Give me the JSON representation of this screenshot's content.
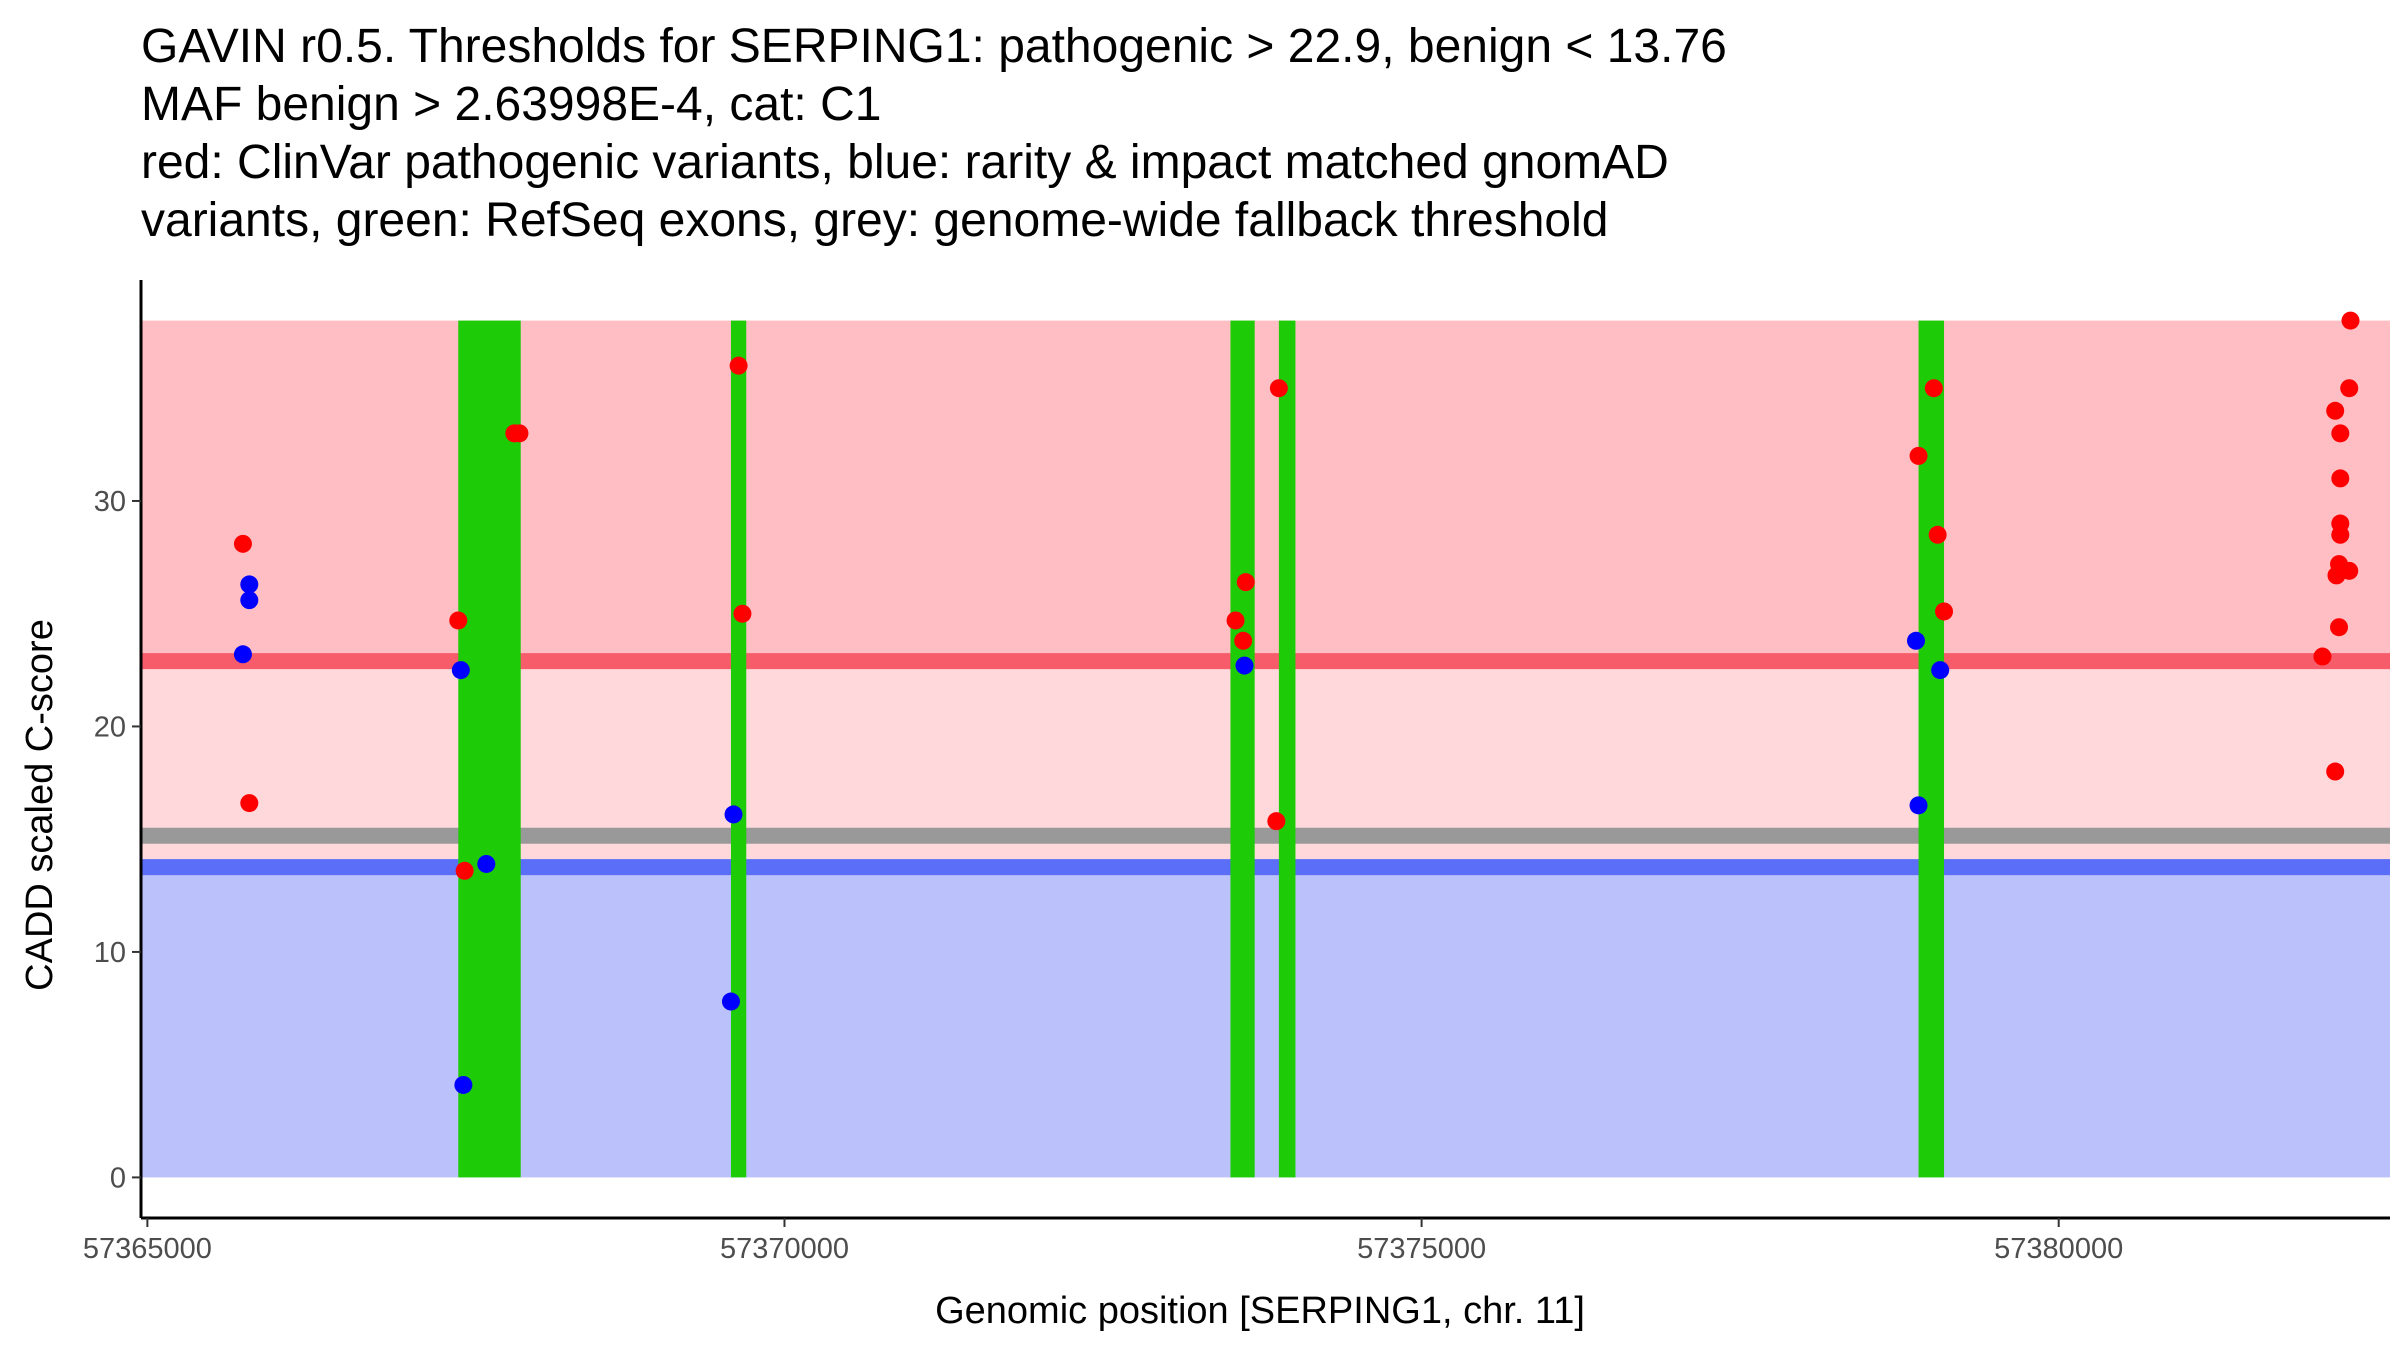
{
  "chart_data": {
    "type": "scatter",
    "title_lines": [
      "GAVIN r0.5. Thresholds for SERPING1: pathogenic > 22.9, benign < 13.76",
      "MAF benign > 2.63998E-4, cat: C1",
      "red: ClinVar pathogenic variants, blue: rarity & impact matched gnomAD",
      "variants, green: RefSeq exons, grey: genome-wide fallback threshold"
    ],
    "xlabel": "Genomic position [SERPING1, chr. 11]",
    "ylabel": "CADD scaled C-score",
    "xlim": [
      57364950,
      57382600
    ],
    "ylim": [
      -1.8,
      39.8
    ],
    "x_ticks": [
      {
        "value": 57365000,
        "label": "57365000"
      },
      {
        "value": 57370000,
        "label": "57370000"
      },
      {
        "value": 57375000,
        "label": "57375000"
      },
      {
        "value": 57380000,
        "label": "57380000"
      }
    ],
    "y_ticks": [
      {
        "value": 0,
        "label": "0"
      },
      {
        "value": 10,
        "label": "10"
      },
      {
        "value": 20,
        "label": "20"
      },
      {
        "value": 30,
        "label": "30"
      }
    ],
    "thresholds": {
      "pathogenic": 22.9,
      "benign": 13.76,
      "fallback": 15.15,
      "region_top": 38
    },
    "colors": {
      "pathogenic_region": "#ffbec4",
      "middle_region": "#ffd8dc",
      "benign_region": "#bbc1fb",
      "pathogenic_line": "#f65c6a",
      "benign_line": "#5a6ef8",
      "fallback_line": "#999999",
      "exon": "#1dcb06",
      "pathogenic_point": "#ff0000",
      "benign_point": "#0000ff"
    },
    "exons": [
      [
        57367440,
        57367930
      ],
      [
        57369580,
        57369700
      ],
      [
        57373500,
        57373690
      ],
      [
        57373880,
        57374010
      ],
      [
        57378900,
        57379100
      ]
    ],
    "series": [
      {
        "name": "ClinVar pathogenic variants",
        "color": "#ff0000",
        "points": [
          [
            57365750,
            28.1
          ],
          [
            57365800,
            16.6
          ],
          [
            57367440,
            24.7
          ],
          [
            57367490,
            13.6
          ],
          [
            57367880,
            33.0
          ],
          [
            57367920,
            33.0
          ],
          [
            57369640,
            36.0
          ],
          [
            57369670,
            25.0
          ],
          [
            57373540,
            24.7
          ],
          [
            57373620,
            26.4
          ],
          [
            57373600,
            23.8
          ],
          [
            57373880,
            35.0
          ],
          [
            57373860,
            15.8
          ],
          [
            57378900,
            32.0
          ],
          [
            57379020,
            35.0
          ],
          [
            57379050,
            28.5
          ],
          [
            57379100,
            25.1
          ],
          [
            57382070,
            23.1
          ],
          [
            57382170,
            34.0
          ],
          [
            57382210,
            33.0
          ],
          [
            57382210,
            31.0
          ],
          [
            57382210,
            29.0
          ],
          [
            57382210,
            28.5
          ],
          [
            57382200,
            27.2
          ],
          [
            57382180,
            26.7
          ],
          [
            57382280,
            26.9
          ],
          [
            57382200,
            24.4
          ],
          [
            57382170,
            18.0
          ],
          [
            57382290,
            38.0
          ],
          [
            57382280,
            35.0
          ]
        ]
      },
      {
        "name": "rarity & impact matched gnomAD variants",
        "color": "#0000ff",
        "points": [
          [
            57365800,
            26.3
          ],
          [
            57365800,
            25.6
          ],
          [
            57365750,
            23.2
          ],
          [
            57367460,
            22.5
          ],
          [
            57367660,
            13.9
          ],
          [
            57367480,
            4.1
          ],
          [
            57369600,
            16.1
          ],
          [
            57369580,
            7.8
          ],
          [
            57373610,
            22.7
          ],
          [
            57378880,
            23.8
          ],
          [
            57378900,
            16.5
          ],
          [
            57379070,
            22.5
          ]
        ]
      }
    ]
  }
}
